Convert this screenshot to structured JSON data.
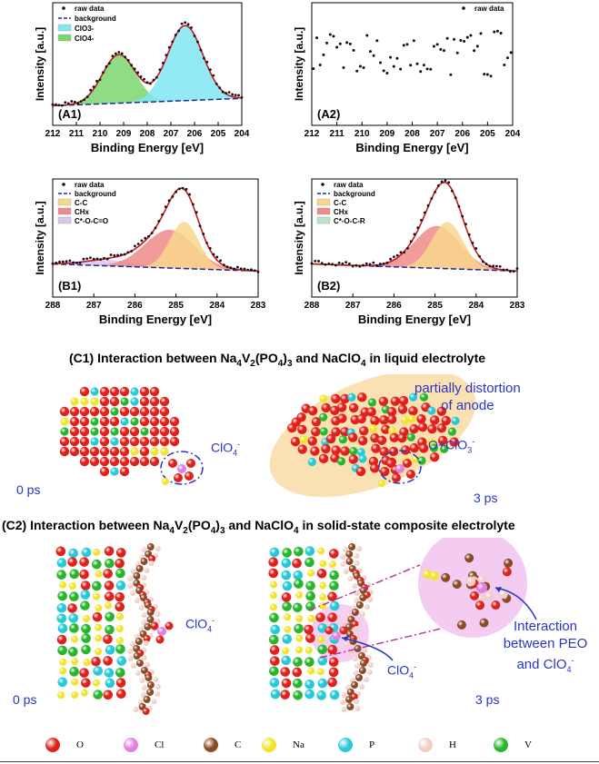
{
  "chart_data": [
    {
      "type": "line",
      "panel": "A1",
      "xlabel": "Binding Energy [eV]",
      "ylabel": "Intensity [a.u.]",
      "xlim": [
        212,
        204
      ],
      "xticks": [
        "212",
        "211",
        "210",
        "209",
        "208",
        "207",
        "206",
        "205",
        "204"
      ],
      "legend": [
        "raw data",
        "background",
        "ClO3-",
        "ClO4-"
      ],
      "series": [
        {
          "name": "ClO3-",
          "center": 206.4,
          "height": 0.85,
          "width": 0.75
        },
        {
          "name": "ClO4-",
          "center": 209.2,
          "height": 0.55,
          "width": 0.7
        }
      ]
    },
    {
      "type": "scatter",
      "panel": "A2",
      "xlabel": "Binding Energy [eV]",
      "ylabel": "Intensity [a.u.]",
      "xlim": [
        212,
        204
      ],
      "xticks": [
        "212",
        "211",
        "210",
        "209",
        "208",
        "207",
        "206",
        "205",
        "204"
      ],
      "legend": [
        "raw data"
      ]
    },
    {
      "type": "line",
      "panel": "B1",
      "xlabel": "Binding Energy [eV]",
      "ylabel": "Intensity [a.u.]",
      "xlim": [
        288,
        283
      ],
      "xticks": [
        "288",
        "287",
        "286",
        "285",
        "284",
        "283"
      ],
      "legend": [
        "raw data",
        "background",
        "C-C",
        "CHx",
        "C*-O-C=O"
      ],
      "series": [
        {
          "name": "C-C",
          "center": 284.8,
          "height": 0.55,
          "width": 0.35
        },
        {
          "name": "CHx",
          "center": 285.15,
          "height": 0.45,
          "width": 0.6
        },
        {
          "name": "C*-O-C=O",
          "center": 286.6,
          "height": 0.07,
          "width": 0.6
        }
      ]
    },
    {
      "type": "line",
      "panel": "B2",
      "xlabel": "Binding Energy [eV]",
      "ylabel": "Intensity [a.u.]",
      "xlim": [
        288,
        283
      ],
      "xticks": [
        "288",
        "287",
        "286",
        "285",
        "284",
        "283"
      ],
      "legend": [
        "raw data",
        "background",
        "C-C",
        "CHx",
        "C*-O-C-R"
      ],
      "series": [
        {
          "name": "C-C",
          "center": 284.7,
          "height": 0.55,
          "width": 0.38
        },
        {
          "name": "CHx",
          "center": 284.95,
          "height": 0.5,
          "width": 0.55
        }
      ]
    }
  ],
  "colors": {
    "clo3": "#80e6f3",
    "clo4": "#7ad66f",
    "cc": "#f8d78c",
    "chx": "#f08a8a",
    "coc": "#d9c6ea",
    "cocr": "#b6e6c6",
    "fit": "#c8161d",
    "bg": "#1a2a9a"
  },
  "sections": {
    "c1_pre": "(C1) Interaction between Na",
    "c1_mid1": "V",
    "c1_mid2": "(PO",
    "c1_mid3": ")",
    "c1_post": " and NaClO",
    "c1_end": " in liquid electrolyte",
    "c2_pre": "(C2) Interaction between Na",
    "c2_end": " in solid-state composite electrolyte",
    "sub4": "4",
    "sub2": "2",
    "sub3": "3"
  },
  "annotations": {
    "clo4": "ClO",
    "clo4_sup": "4",
    "clo4_minus": "-",
    "o_clo3": "O+ClO",
    "o_clo3_sub": "3",
    "partial1": "partially distortion",
    "partial2": "of anode",
    "t0": "0 ps",
    "t3": "3 ps",
    "inter1": "Interaction",
    "inter2": "between PEO",
    "inter3": "and ClO"
  },
  "atom_legend": [
    {
      "label": "O",
      "color": "#e0201a"
    },
    {
      "label": "Cl",
      "color": "#e27fe3"
    },
    {
      "label": "C",
      "color": "#8a4a25"
    },
    {
      "label": "Na",
      "color": "#f3e42a"
    },
    {
      "label": "P",
      "color": "#27c9d8"
    },
    {
      "label": "H",
      "color": "#f1cfc8"
    },
    {
      "label": "V",
      "color": "#27b52c"
    }
  ]
}
